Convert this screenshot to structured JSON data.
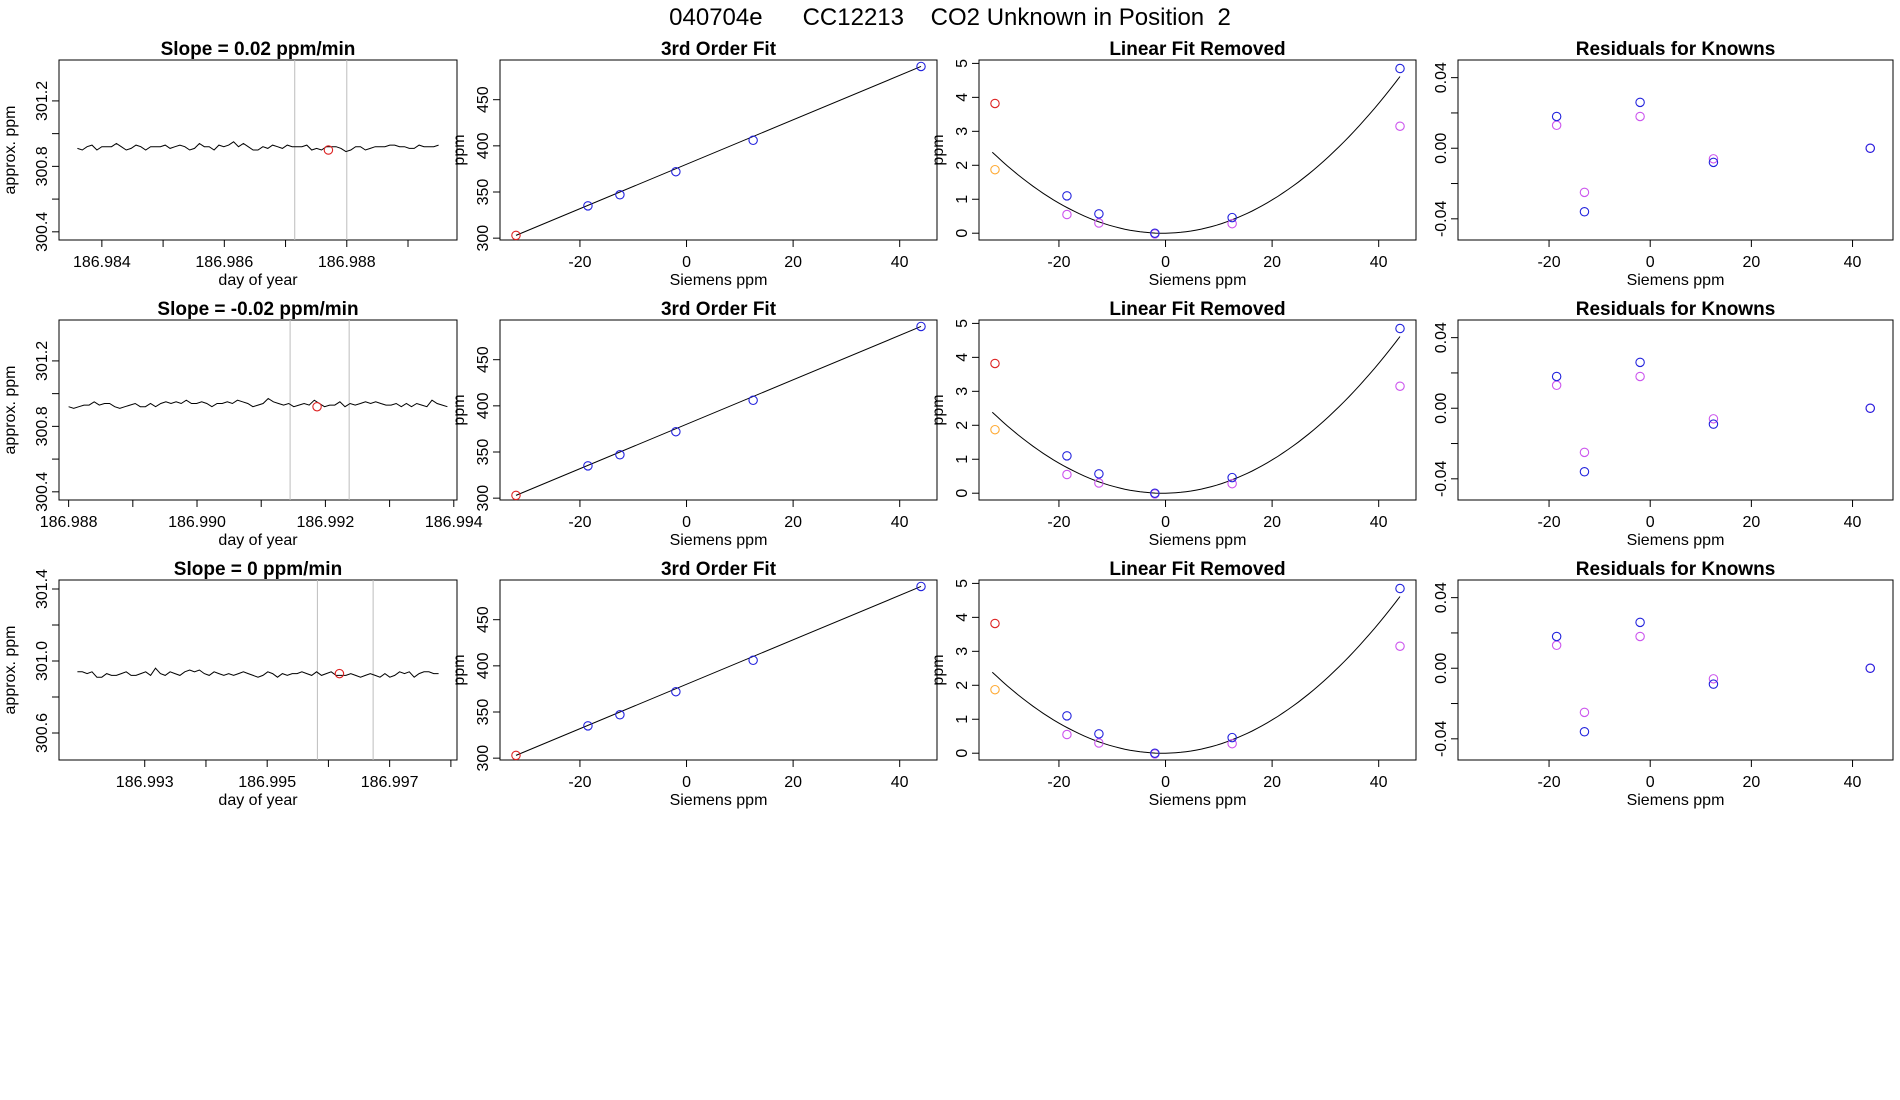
{
  "figure": {
    "title": "040704e      CC12213    CO2 Unknown in Position  2"
  },
  "colors": {
    "known": "#2222dd",
    "unknown": "#dd2222",
    "fit_alt": "#cc55ee",
    "outlier": "#ffaa33",
    "marker_line": "#bdbdbd"
  },
  "chart_data": [
    {
      "type": "line",
      "panel": "time-series",
      "row": 0,
      "title": "Slope =  0.02  ppm/min",
      "xlabel": "day of year",
      "ylabel": "approx. ppm",
      "xlim": [
        186.9833,
        186.9898
      ],
      "ylim": [
        300.35,
        301.45
      ],
      "xticks": [
        186.984,
        186.985,
        186.986,
        186.987,
        186.988,
        186.989
      ],
      "xtick_labels": [
        "186.984",
        "",
        "186.986",
        "",
        "186.988",
        ""
      ],
      "yticks": [
        300.4,
        300.6,
        300.8,
        301.0,
        301.2
      ],
      "ytick_labels": [
        "300.4",
        "",
        "300.8",
        "",
        "301.2"
      ],
      "series_start": 186.9836,
      "series_end": 186.9895,
      "series_values": [
        300.91,
        300.9,
        300.92,
        300.93,
        300.9,
        300.92,
        300.92,
        300.92,
        300.94,
        300.92,
        300.9,
        300.91,
        300.93,
        300.92,
        300.9,
        300.92,
        300.92,
        300.92,
        300.93,
        300.91,
        300.92,
        300.93,
        300.92,
        300.9,
        300.91,
        300.94,
        300.92,
        300.92,
        300.9,
        300.93,
        300.92,
        300.93,
        300.95,
        300.92,
        300.94,
        300.92,
        300.9,
        300.9,
        300.92,
        300.91,
        300.93,
        300.92,
        300.91,
        300.93,
        300.92,
        300.92,
        300.92,
        300.93,
        300.9,
        300.91,
        300.9,
        300.92,
        300.92,
        300.92,
        300.91,
        300.89,
        300.9,
        300.92,
        300.92,
        300.9,
        300.91,
        300.92,
        300.92,
        300.92,
        300.93,
        300.93,
        300.92,
        300.92,
        300.91,
        300.91,
        300.93,
        300.92,
        300.92,
        300.92,
        300.93
      ],
      "marker_x": 186.9877,
      "marker_y": 300.9,
      "vlines": [
        186.98715,
        186.988
      ]
    },
    {
      "type": "scatter",
      "panel": "fit",
      "row": 0,
      "title": "3rd Order Fit",
      "xlabel": "Siemens ppm",
      "ylabel": "ppm",
      "xlim": [
        -35,
        47
      ],
      "ylim": [
        298,
        493
      ],
      "xticks": [
        -20,
        0,
        20,
        40
      ],
      "xtick_labels": [
        "-20",
        "0",
        "20",
        "40"
      ],
      "yticks": [
        300,
        350,
        400,
        450
      ],
      "ytick_labels": [
        "300",
        "350",
        "400",
        "450"
      ],
      "curve": [
        [
          -32,
          303
        ],
        [
          44,
          486
        ]
      ],
      "known_points": [
        [
          -18.5,
          335
        ],
        [
          -12.5,
          347
        ],
        [
          -2,
          372
        ],
        [
          12.5,
          406
        ],
        [
          44,
          486
        ]
      ],
      "unknown_points": [
        [
          -32,
          303
        ]
      ]
    },
    {
      "type": "scatter",
      "panel": "linear-removed",
      "row": 0,
      "title": "Linear Fit Removed",
      "xlabel": "Siemens ppm",
      "ylabel": "ppm",
      "xlim": [
        -35,
        47
      ],
      "ylim": [
        -0.2,
        5.1
      ],
      "xticks": [
        -20,
        0,
        20,
        40
      ],
      "xtick_labels": [
        "-20",
        "0",
        "20",
        "40"
      ],
      "yticks": [
        0,
        1,
        2,
        3,
        4,
        5
      ],
      "ytick_labels": [
        "0",
        "1",
        "2",
        "3",
        "4",
        "5"
      ],
      "curve_vertex": [
        -0.5,
        0
      ],
      "curve_from": -32.5,
      "curve_to": 44,
      "curve_coef": 0.00233,
      "known_points": [
        [
          -18.5,
          1.1
        ],
        [
          -12.5,
          0.57
        ],
        [
          -2,
          0
        ],
        [
          12.5,
          0.46
        ],
        [
          44,
          4.85
        ]
      ],
      "unknown_points": [
        [
          -32,
          3.82
        ]
      ],
      "alt_points": [
        [
          -18.5,
          0.55
        ],
        [
          -12.5,
          0.3
        ],
        [
          -2,
          -0.02
        ],
        [
          12.5,
          0.28
        ],
        [
          44,
          3.15
        ]
      ],
      "outlier_points": [
        [
          -32,
          1.87
        ]
      ]
    },
    {
      "type": "scatter",
      "panel": "residuals",
      "row": 0,
      "title": "Residuals for Knowns",
      "xlabel": "Siemens ppm",
      "ylabel": "",
      "xlim": [
        -38,
        48
      ],
      "ylim": [
        -0.052,
        0.05
      ],
      "xticks": [
        -20,
        0,
        20,
        40
      ],
      "xtick_labels": [
        "-20",
        "0",
        "20",
        "40"
      ],
      "yticks": [
        -0.04,
        -0.02,
        0,
        0.02,
        0.04
      ],
      "ytick_labels": [
        "-0.04",
        "",
        "0.00",
        "",
        "0.04"
      ],
      "known_points": [
        [
          -18.5,
          0.018
        ],
        [
          -13,
          -0.036
        ],
        [
          -2,
          0.026
        ],
        [
          12.5,
          -0.008
        ],
        [
          43.5,
          0
        ]
      ],
      "alt_points": [
        [
          -18.5,
          0.013
        ],
        [
          -13,
          -0.025
        ],
        [
          -2,
          0.018
        ],
        [
          12.5,
          -0.006
        ],
        [
          43.5,
          0
        ]
      ]
    },
    {
      "type": "line",
      "panel": "time-series",
      "row": 1,
      "title": "Slope =  -0.02  ppm/min",
      "xlabel": "day of year",
      "ylabel": "approx. ppm",
      "xlim": [
        186.98785,
        186.99405
      ],
      "ylim": [
        300.35,
        301.45
      ],
      "xticks": [
        186.988,
        186.989,
        186.99,
        186.991,
        186.992,
        186.993,
        186.994
      ],
      "xtick_labels": [
        "186.988",
        "",
        "186.990",
        "",
        "186.992",
        "",
        "186.994"
      ],
      "yticks": [
        300.4,
        300.6,
        300.8,
        301.0,
        301.2
      ],
      "ytick_labels": [
        "300.4",
        "",
        "300.8",
        "",
        "301.2"
      ],
      "series_start": 186.988,
      "series_end": 186.9939,
      "series_values": [
        300.92,
        300.91,
        300.92,
        300.93,
        300.93,
        300.95,
        300.93,
        300.94,
        300.94,
        300.92,
        300.91,
        300.92,
        300.93,
        300.94,
        300.92,
        300.92,
        300.94,
        300.92,
        300.94,
        300.95,
        300.94,
        300.95,
        300.94,
        300.96,
        300.94,
        300.94,
        300.95,
        300.94,
        300.92,
        300.94,
        300.94,
        300.95,
        300.94,
        300.96,
        300.95,
        300.94,
        300.92,
        300.93,
        300.94,
        300.97,
        300.95,
        300.94,
        300.93,
        300.94,
        300.92,
        300.93,
        300.94,
        300.93,
        300.96,
        300.94,
        300.92,
        300.93,
        300.93,
        300.95,
        300.92,
        300.94,
        300.93,
        300.94,
        300.95,
        300.94,
        300.95,
        300.94,
        300.93,
        300.93,
        300.94,
        300.92,
        300.94,
        300.92,
        300.94,
        300.93,
        300.92,
        300.96,
        300.94,
        300.93,
        300.92
      ],
      "marker_x": 186.99187,
      "marker_y": 300.92,
      "vlines": [
        186.99145,
        186.99237
      ]
    },
    {
      "type": "scatter",
      "panel": "fit",
      "row": 1,
      "title": "3rd Order Fit",
      "xlabel": "Siemens ppm",
      "ylabel": "ppm",
      "xlim": [
        -35,
        47
      ],
      "ylim": [
        298,
        493
      ],
      "xticks": [
        -20,
        0,
        20,
        40
      ],
      "xtick_labels": [
        "-20",
        "0",
        "20",
        "40"
      ],
      "yticks": [
        300,
        350,
        400,
        450
      ],
      "ytick_labels": [
        "300",
        "350",
        "400",
        "450"
      ],
      "curve": [
        [
          -32,
          303
        ],
        [
          44,
          486
        ]
      ],
      "known_points": [
        [
          -18.5,
          335
        ],
        [
          -12.5,
          347
        ],
        [
          -2,
          372
        ],
        [
          12.5,
          406
        ],
        [
          44,
          486
        ]
      ],
      "unknown_points": [
        [
          -32,
          303
        ]
      ]
    },
    {
      "type": "scatter",
      "panel": "linear-removed",
      "row": 1,
      "title": "Linear Fit Removed",
      "xlabel": "Siemens ppm",
      "ylabel": "ppm",
      "xlim": [
        -35,
        47
      ],
      "ylim": [
        -0.2,
        5.1
      ],
      "xticks": [
        -20,
        0,
        20,
        40
      ],
      "xtick_labels": [
        "-20",
        "0",
        "20",
        "40"
      ],
      "yticks": [
        0,
        1,
        2,
        3,
        4,
        5
      ],
      "ytick_labels": [
        "0",
        "1",
        "2",
        "3",
        "4",
        "5"
      ],
      "curve_vertex": [
        -0.5,
        0
      ],
      "curve_from": -32.5,
      "curve_to": 44,
      "curve_coef": 0.00233,
      "known_points": [
        [
          -18.5,
          1.1
        ],
        [
          -12.5,
          0.57
        ],
        [
          -2,
          0
        ],
        [
          12.5,
          0.46
        ],
        [
          44,
          4.85
        ]
      ],
      "unknown_points": [
        [
          -32,
          3.82
        ]
      ],
      "alt_points": [
        [
          -18.5,
          0.55
        ],
        [
          -12.5,
          0.3
        ],
        [
          -2,
          -0.02
        ],
        [
          12.5,
          0.28
        ],
        [
          44,
          3.15
        ]
      ],
      "outlier_points": [
        [
          -32,
          1.87
        ]
      ]
    },
    {
      "type": "scatter",
      "panel": "residuals",
      "row": 1,
      "title": "Residuals for Knowns",
      "xlabel": "Siemens ppm",
      "ylabel": "",
      "xlim": [
        -38,
        48
      ],
      "ylim": [
        -0.052,
        0.05
      ],
      "xticks": [
        -20,
        0,
        20,
        40
      ],
      "xtick_labels": [
        "-20",
        "0",
        "20",
        "40"
      ],
      "yticks": [
        -0.04,
        -0.02,
        0,
        0.02,
        0.04
      ],
      "ytick_labels": [
        "-0.04",
        "",
        "0.00",
        "",
        "0.04"
      ],
      "known_points": [
        [
          -18.5,
          0.018
        ],
        [
          -13,
          -0.036
        ],
        [
          -2,
          0.026
        ],
        [
          12.5,
          -0.009
        ],
        [
          43.5,
          0
        ]
      ],
      "alt_points": [
        [
          -18.5,
          0.013
        ],
        [
          -13,
          -0.025
        ],
        [
          -2,
          0.018
        ],
        [
          12.5,
          -0.006
        ],
        [
          43.5,
          0
        ]
      ]
    },
    {
      "type": "line",
      "panel": "time-series",
      "row": 2,
      "title": "Slope =  0  ppm/min",
      "xlabel": "day of year",
      "ylabel": "approx. ppm",
      "xlim": [
        186.9916,
        186.9981
      ],
      "ylim": [
        300.45,
        301.45
      ],
      "xticks": [
        186.993,
        186.994,
        186.995,
        186.996,
        186.997,
        186.998
      ],
      "xtick_labels": [
        "186.993",
        "",
        "186.995",
        "",
        "186.997",
        ""
      ],
      "yticks": [
        300.6,
        300.8,
        301.0,
        301.2,
        301.4
      ],
      "ytick_labels": [
        "300.6",
        "",
        "301.0",
        "",
        "301.4"
      ],
      "series_start": 186.9919,
      "series_end": 186.9978,
      "series_values": [
        300.94,
        300.94,
        300.93,
        300.94,
        300.91,
        300.91,
        300.93,
        300.92,
        300.92,
        300.93,
        300.94,
        300.92,
        300.92,
        300.93,
        300.94,
        300.92,
        300.96,
        300.93,
        300.92,
        300.94,
        300.93,
        300.92,
        300.94,
        300.95,
        300.94,
        300.95,
        300.93,
        300.92,
        300.94,
        300.93,
        300.92,
        300.93,
        300.92,
        300.93,
        300.94,
        300.93,
        300.92,
        300.91,
        300.92,
        300.94,
        300.93,
        300.91,
        300.93,
        300.92,
        300.93,
        300.93,
        300.94,
        300.93,
        300.92,
        300.94,
        300.92,
        300.93,
        300.94,
        300.92,
        300.92,
        300.92,
        300.93,
        300.92,
        300.91,
        300.92,
        300.93,
        300.92,
        300.91,
        300.93,
        300.91,
        300.92,
        300.94,
        300.93,
        300.94,
        300.91,
        300.93,
        300.94,
        300.94,
        300.93,
        300.93
      ],
      "marker_x": 186.99618,
      "marker_y": 300.93,
      "vlines": [
        186.99582,
        186.99673
      ]
    },
    {
      "type": "scatter",
      "panel": "fit",
      "row": 2,
      "title": "3rd Order Fit",
      "xlabel": "Siemens ppm",
      "ylabel": "ppm",
      "xlim": [
        -35,
        47
      ],
      "ylim": [
        298,
        493
      ],
      "xticks": [
        -20,
        0,
        20,
        40
      ],
      "xtick_labels": [
        "-20",
        "0",
        "20",
        "40"
      ],
      "yticks": [
        300,
        350,
        400,
        450
      ],
      "ytick_labels": [
        "300",
        "350",
        "400",
        "450"
      ],
      "curve": [
        [
          -32,
          303
        ],
        [
          44,
          486
        ]
      ],
      "known_points": [
        [
          -18.5,
          335
        ],
        [
          -12.5,
          347
        ],
        [
          -2,
          372
        ],
        [
          12.5,
          406
        ],
        [
          44,
          486
        ]
      ],
      "unknown_points": [
        [
          -32,
          303
        ]
      ]
    },
    {
      "type": "scatter",
      "panel": "linear-removed",
      "row": 2,
      "title": "Linear Fit Removed",
      "xlabel": "Siemens ppm",
      "ylabel": "ppm",
      "xlim": [
        -35,
        47
      ],
      "ylim": [
        -0.2,
        5.1
      ],
      "xticks": [
        -20,
        0,
        20,
        40
      ],
      "xtick_labels": [
        "-20",
        "0",
        "20",
        "40"
      ],
      "yticks": [
        0,
        1,
        2,
        3,
        4,
        5
      ],
      "ytick_labels": [
        "0",
        "1",
        "2",
        "3",
        "4",
        "5"
      ],
      "curve_vertex": [
        -0.5,
        0
      ],
      "curve_from": -32.5,
      "curve_to": 44,
      "curve_coef": 0.00233,
      "known_points": [
        [
          -18.5,
          1.1
        ],
        [
          -12.5,
          0.57
        ],
        [
          -2,
          0
        ],
        [
          12.5,
          0.46
        ],
        [
          44,
          4.85
        ]
      ],
      "unknown_points": [
        [
          -32,
          3.82
        ]
      ],
      "alt_points": [
        [
          -18.5,
          0.55
        ],
        [
          -12.5,
          0.3
        ],
        [
          -2,
          -0.02
        ],
        [
          12.5,
          0.28
        ],
        [
          44,
          3.15
        ]
      ],
      "outlier_points": [
        [
          -32,
          1.87
        ]
      ]
    },
    {
      "type": "scatter",
      "panel": "residuals",
      "row": 2,
      "title": "Residuals for Knowns",
      "xlabel": "Siemens ppm",
      "ylabel": "",
      "xlim": [
        -38,
        48
      ],
      "ylim": [
        -0.052,
        0.05
      ],
      "xticks": [
        -20,
        0,
        20,
        40
      ],
      "xtick_labels": [
        "-20",
        "0",
        "20",
        "40"
      ],
      "yticks": [
        -0.04,
        -0.02,
        0,
        0.02,
        0.04
      ],
      "ytick_labels": [
        "-0.04",
        "",
        "0.00",
        "",
        "0.04"
      ],
      "known_points": [
        [
          -18.5,
          0.018
        ],
        [
          -13,
          -0.036
        ],
        [
          -2,
          0.026
        ],
        [
          12.5,
          -0.009
        ],
        [
          43.5,
          0
        ]
      ],
      "alt_points": [
        [
          -18.5,
          0.013
        ],
        [
          -13,
          -0.025
        ],
        [
          -2,
          0.018
        ],
        [
          12.5,
          -0.006
        ],
        [
          43.5,
          0
        ]
      ]
    }
  ]
}
